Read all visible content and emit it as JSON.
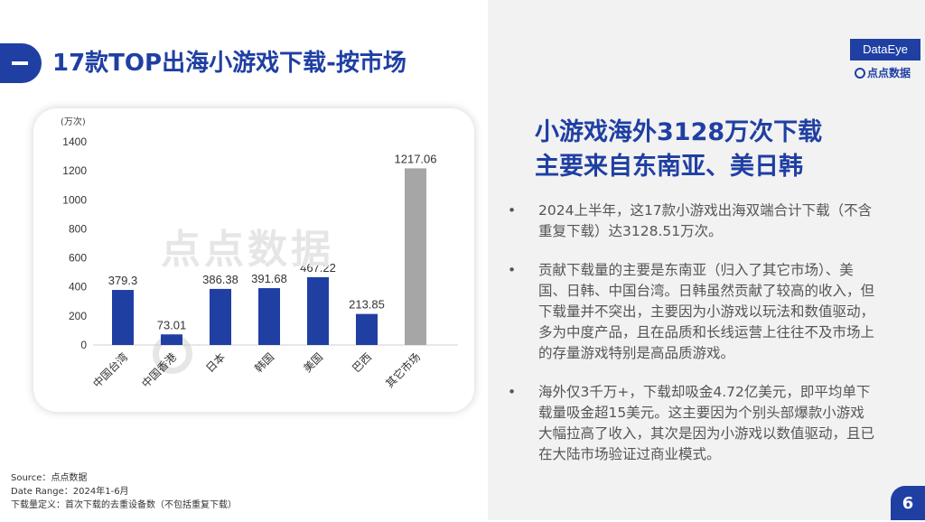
{
  "header": {
    "title": "17款TOP出海小游戏下载-按市场"
  },
  "brand": {
    "logo_text": "DataEye",
    "sub_logo_text": "点点数据",
    "watermark_text": "点点数据"
  },
  "chart_data": {
    "type": "bar",
    "unit_label": "(万次)",
    "categories": [
      "中国台湾",
      "中国香港",
      "日本",
      "韩国",
      "美国",
      "巴西",
      "其它市场"
    ],
    "values": [
      379.3,
      73.01,
      386.38,
      391.68,
      467.22,
      213.85,
      1217.06
    ],
    "value_labels": [
      "379.3",
      "73.01",
      "386.38",
      "391.68",
      "467.22",
      "213.85",
      "1217.06"
    ],
    "ylim": [
      0,
      1400
    ],
    "yticks": [
      "0",
      "200",
      "400",
      "600",
      "800",
      "1000",
      "1200",
      "1400"
    ],
    "colors": [
      "#1f3fa3",
      "#1f3fa3",
      "#1f3fa3",
      "#1f3fa3",
      "#1f3fa3",
      "#1f3fa3",
      "#a6a6a6"
    ],
    "grid": false
  },
  "source": {
    "line1": "Source：点点数据",
    "line2": "Date Range：2024年1-6月",
    "line3": "下载量定义：首次下载的去重设备数（不包括重复下载）"
  },
  "right": {
    "headline_line1": "小游戏海外3128万次下载",
    "headline_line2": "主要来自东南亚、美日韩",
    "bullet_marker": "•",
    "bullets": [
      "2024上半年，这17款小游戏出海双端合计下载（不含重复下载）达3128.51万次。",
      "贡献下载量的主要是东南亚（归入了其它市场）、美国、日韩、中国台湾。日韩虽然贡献了较高的收入，但下载量并不突出，主要因为小游戏以玩法和数值驱动，多为中度产品，且在品质和长线运营上往往不及市场上的存量游戏特别是高品质游戏。",
      "海外仅3千万+，下载却吸金4.72亿美元，即平均单下载量吸金超15美元。这主要因为个别头部爆款小游戏大幅拉高了收入，其次是因为小游戏以数值驱动，且已在大陆市场验证过商业模式。"
    ]
  },
  "page_number": "6"
}
